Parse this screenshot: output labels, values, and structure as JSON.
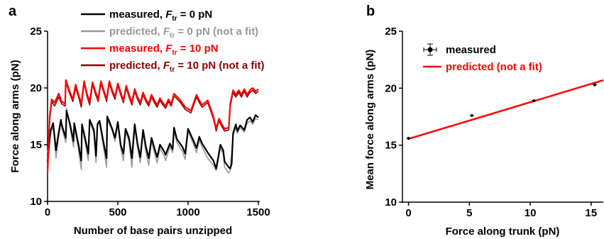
{
  "panels": {
    "a": {
      "letter": "a"
    },
    "b": {
      "letter": "b"
    }
  },
  "chart_data": [
    {
      "type": "line",
      "panel": "a",
      "xlabel": "Number of base pairs unzipped",
      "ylabel": "Force along arms (pN)",
      "xlim": [
        0,
        1500
      ],
      "ylim": [
        10,
        25
      ],
      "x_ticks": [
        0,
        500,
        1000,
        1500
      ],
      "y_ticks": [
        10,
        15,
        20,
        25
      ],
      "legend_position": "top",
      "legend": [
        {
          "prefix": "measured, ",
          "f": "F",
          "sub": "tr",
          "suffix": " = 0 pN",
          "color": "#000000"
        },
        {
          "prefix": "predicted,  ",
          "f": "F",
          "sub": "tr",
          "suffix": " = 0 pN (not a fit)",
          "color": "#999999"
        },
        {
          "prefix": "measured, ",
          "f": "F",
          "sub": "tr",
          "suffix": " = 10 pN",
          "color": "#ff0000"
        },
        {
          "prefix": "predicted,  ",
          "f": "F",
          "sub": "tr",
          "suffix": " = 10 pN (not a fit)",
          "color": "#8b0000"
        }
      ],
      "series": [
        {
          "color": "#999999",
          "width": 1.6,
          "x": [
            0,
            20,
            40,
            60,
            80,
            95,
            100,
            130,
            135,
            160,
            185,
            190,
            220,
            240,
            245,
            270,
            290,
            300,
            330,
            345,
            355,
            370,
            395,
            420,
            425,
            460,
            480,
            500,
            520,
            540,
            555,
            580,
            600,
            620,
            640,
            660,
            680,
            700,
            720,
            740,
            760,
            780,
            800,
            830,
            840,
            870,
            890,
            900,
            920,
            960,
            980,
            1000,
            1040,
            1060,
            1080,
            1100,
            1140,
            1180,
            1200,
            1210,
            1230,
            1250,
            1260,
            1290,
            1300,
            1320,
            1340,
            1350,
            1370,
            1400,
            1420,
            1440,
            1460,
            1480,
            1500
          ],
          "y": [
            14.3,
            15.8,
            16.7,
            13.8,
            15.8,
            16.9,
            16.5,
            15.2,
            18.2,
            16.5,
            14.8,
            16.6,
            14.6,
            12.8,
            16.6,
            15.0,
            13.6,
            17.0,
            16.0,
            13.4,
            16.6,
            16.9,
            15.0,
            13.0,
            17.2,
            16.2,
            15.3,
            16.8,
            14.7,
            13.6,
            16.1,
            15.3,
            13.0,
            16.5,
            14.8,
            13.4,
            16.1,
            14.3,
            13.2,
            15.3,
            14.3,
            13.4,
            14.7,
            14.0,
            13.6,
            14.8,
            14.3,
            16.2,
            15.2,
            14.4,
            13.7,
            16.2,
            15.0,
            14.3,
            15.4,
            14.8,
            13.8,
            13.2,
            12.7,
            13.3,
            14.7,
            14.2,
            13.0,
            12.5,
            12.8,
            15.8,
            16.6,
            16.0,
            16.5,
            16.1,
            16.9,
            17.1,
            16.8,
            17.3,
            17.2
          ]
        },
        {
          "color": "#000000",
          "width": 2.2,
          "x": [
            0,
            10,
            20,
            40,
            60,
            80,
            95,
            100,
            130,
            135,
            160,
            185,
            190,
            220,
            240,
            245,
            270,
            290,
            300,
            330,
            345,
            355,
            370,
            395,
            420,
            425,
            460,
            480,
            500,
            520,
            540,
            555,
            580,
            600,
            620,
            640,
            660,
            680,
            700,
            720,
            740,
            760,
            780,
            800,
            830,
            840,
            870,
            890,
            900,
            920,
            960,
            980,
            1000,
            1040,
            1060,
            1080,
            1100,
            1140,
            1180,
            1200,
            1210,
            1230,
            1250,
            1260,
            1290,
            1300,
            1310,
            1320,
            1340,
            1350,
            1370,
            1400,
            1420,
            1440,
            1460,
            1480,
            1500
          ],
          "y": [
            13.4,
            14.8,
            16.2,
            16.9,
            14.5,
            16.1,
            17.2,
            16.8,
            15.6,
            18.0,
            16.8,
            15.3,
            16.9,
            15.0,
            13.6,
            16.8,
            15.4,
            14.2,
            17.2,
            16.3,
            14.0,
            16.8,
            17.1,
            15.4,
            13.8,
            17.5,
            16.4,
            15.6,
            17.0,
            15.0,
            14.2,
            16.4,
            15.6,
            13.8,
            16.8,
            15.1,
            13.9,
            16.3,
            14.8,
            13.8,
            15.6,
            14.7,
            13.9,
            15.0,
            14.4,
            14.1,
            15.1,
            14.6,
            16.5,
            15.5,
            14.8,
            14.2,
            16.4,
            15.3,
            14.7,
            15.7,
            15.1,
            14.3,
            13.6,
            12.9,
            13.6,
            15.0,
            14.5,
            13.5,
            13.0,
            12.9,
            13.3,
            16.0,
            16.8,
            16.2,
            16.7,
            16.3,
            17.2,
            17.4,
            17.0,
            17.6,
            17.4
          ]
        },
        {
          "color": "#8b0000",
          "width": 1.6,
          "x": [
            0,
            8,
            15,
            30,
            50,
            80,
            100,
            125,
            130,
            160,
            180,
            200,
            220,
            240,
            260,
            280,
            300,
            320,
            340,
            360,
            380,
            400,
            420,
            440,
            460,
            480,
            500,
            520,
            540,
            560,
            580,
            600,
            620,
            640,
            660,
            680,
            700,
            720,
            740,
            760,
            780,
            800,
            820,
            840,
            860,
            880,
            900,
            940,
            980,
            1020,
            1060,
            1080,
            1100,
            1140,
            1180,
            1200,
            1220,
            1240,
            1260,
            1290,
            1300,
            1320,
            1340,
            1360,
            1380,
            1400,
            1420,
            1440,
            1460,
            1480,
            1500
          ],
          "y": [
            12.8,
            15.0,
            17.2,
            18.8,
            18.4,
            19.2,
            18.6,
            18.4,
            20.5,
            19.4,
            18.8,
            20.0,
            19.2,
            18.3,
            20.4,
            19.3,
            18.5,
            20.3,
            19.5,
            18.8,
            20.4,
            19.6,
            18.8,
            20.4,
            19.6,
            19.0,
            20.2,
            19.4,
            18.7,
            20.0,
            19.2,
            18.5,
            19.7,
            19.0,
            18.5,
            19.4,
            18.8,
            18.4,
            19.2,
            18.7,
            18.3,
            18.9,
            18.5,
            18.2,
            18.8,
            18.4,
            19.3,
            18.8,
            18.1,
            17.8,
            19.2,
            18.7,
            18.3,
            18.7,
            17.3,
            16.2,
            17.1,
            16.6,
            16.2,
            16.3,
            18.4,
            19.6,
            19.2,
            19.6,
            19.2,
            19.7,
            19.2,
            19.6,
            19.8,
            19.5,
            19.7
          ]
        },
        {
          "color": "#ff0000",
          "width": 2.2,
          "x": [
            0,
            8,
            15,
            30,
            50,
            80,
            100,
            125,
            130,
            160,
            180,
            200,
            220,
            240,
            260,
            280,
            300,
            320,
            340,
            360,
            380,
            400,
            420,
            440,
            460,
            480,
            500,
            520,
            540,
            560,
            580,
            600,
            620,
            640,
            660,
            680,
            700,
            720,
            740,
            760,
            780,
            800,
            820,
            840,
            860,
            880,
            900,
            940,
            980,
            1020,
            1060,
            1080,
            1100,
            1140,
            1180,
            1200,
            1220,
            1240,
            1260,
            1290,
            1300,
            1320,
            1340,
            1360,
            1380,
            1400,
            1420,
            1440,
            1460,
            1480,
            1500
          ],
          "y": [
            12.5,
            15.2,
            17.5,
            19.0,
            18.7,
            19.5,
            18.8,
            18.6,
            20.7,
            19.6,
            19.0,
            20.3,
            19.4,
            18.6,
            20.6,
            19.5,
            18.8,
            20.5,
            19.7,
            19.0,
            20.6,
            19.8,
            19.0,
            20.6,
            19.8,
            19.2,
            20.4,
            19.6,
            18.9,
            20.2,
            19.4,
            18.7,
            19.9,
            19.2,
            18.7,
            19.6,
            19.0,
            18.6,
            19.4,
            18.9,
            18.5,
            19.1,
            18.7,
            18.4,
            19.0,
            18.6,
            19.5,
            19.0,
            18.3,
            18.0,
            19.4,
            18.9,
            18.5,
            18.9,
            17.5,
            16.4,
            17.3,
            16.8,
            16.4,
            16.5,
            18.6,
            19.8,
            19.4,
            19.8,
            19.4,
            19.9,
            19.4,
            19.8,
            20.0,
            19.7,
            19.9
          ]
        }
      ]
    },
    {
      "type": "scatter",
      "panel": "b",
      "xlabel": "Force along trunk (pN)",
      "ylabel": "Mean force along arms (pN)",
      "xlim": [
        -0.5,
        16
      ],
      "ylim": [
        10,
        25
      ],
      "x_ticks": [
        0,
        5,
        10,
        15
      ],
      "y_ticks": [
        10,
        15,
        20,
        25
      ],
      "legend_position": "top-left",
      "legend": [
        {
          "label": "measured",
          "color": "#000000",
          "marker": "point-with-errorbars"
        },
        {
          "label": "predicted (not a fit)",
          "color": "#ff0000",
          "marker": "line"
        }
      ],
      "points": [
        {
          "x": 0.0,
          "y": 15.6,
          "yerr": 0.1,
          "xerr": 0.15
        },
        {
          "x": 5.2,
          "y": 17.6,
          "yerr": 0.1,
          "xerr": 0.15
        },
        {
          "x": 10.3,
          "y": 18.9,
          "yerr": 0.1,
          "xerr": 0.15
        },
        {
          "x": 15.3,
          "y": 20.3,
          "yerr": 0.15,
          "xerr": 0.15
        }
      ],
      "line": {
        "x": [
          0,
          16
        ],
        "y": [
          15.55,
          20.7
        ]
      }
    }
  ]
}
